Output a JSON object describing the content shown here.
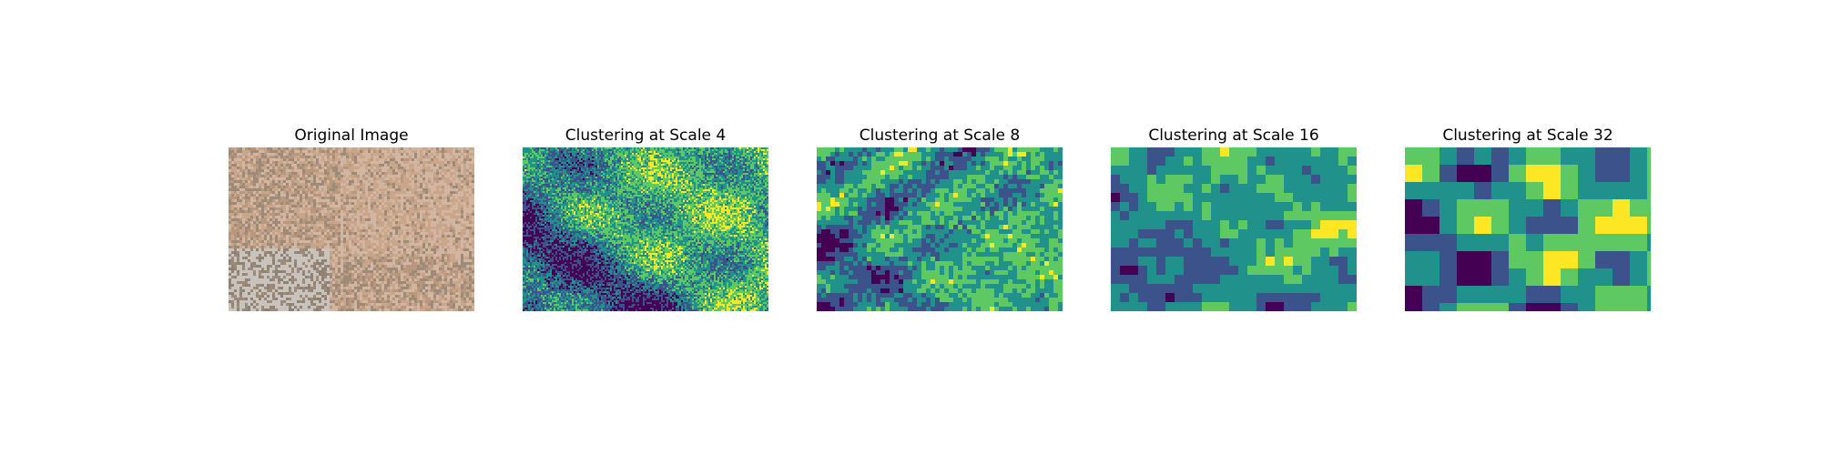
{
  "panels": [
    {
      "title": "Original Image",
      "kind": "photo"
    },
    {
      "title": "Clustering at Scale 4",
      "kind": "cluster",
      "scale": 4
    },
    {
      "title": "Clustering at Scale 8",
      "kind": "cluster",
      "scale": 8
    },
    {
      "title": "Clustering at Scale 16",
      "kind": "cluster",
      "scale": 16
    },
    {
      "title": "Clustering at Scale 32",
      "kind": "cluster",
      "scale": 32
    }
  ],
  "palette": {
    "cluster_colors": [
      "#440154",
      "#3b528b",
      "#21918c",
      "#5ec962",
      "#fde725"
    ],
    "photo_colors": [
      "#b7987f",
      "#c9a58a",
      "#9d8b7a",
      "#d2b6a2",
      "#c8c3bd",
      "#8f8272"
    ]
  }
}
